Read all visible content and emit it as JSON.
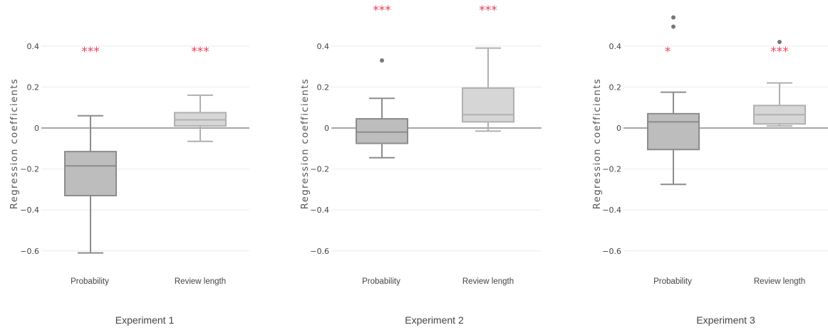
{
  "chart_data": [
    {
      "type": "box",
      "title": "Experiment 1",
      "ylabel": "Regression coefficients",
      "ylim": [
        -0.65,
        0.55
      ],
      "yticks": [
        "0.4",
        "0.2",
        "0",
        "−0.2",
        "−0.4",
        "−0.6"
      ],
      "grid": true,
      "categories": [
        "Probability",
        "Review length"
      ],
      "boxes": [
        {
          "category": "Probability",
          "min": -0.61,
          "q1": -0.33,
          "median": -0.185,
          "q3": -0.115,
          "max": 0.06,
          "outliers": [],
          "significance": "***",
          "color": "#bdbdbd",
          "edge": "#8c8c8c"
        },
        {
          "category": "Review length",
          "min": -0.065,
          "q1": 0.01,
          "median": 0.04,
          "q3": 0.075,
          "max": 0.16,
          "outliers": [],
          "significance": "***",
          "color": "#d6d6d6",
          "edge": "#b0b0b0"
        }
      ]
    },
    {
      "type": "box",
      "title": "Experiment 2",
      "ylabel": "Regression coefficients",
      "ylim": [
        -0.65,
        0.55
      ],
      "yticks": [
        "0.4",
        "0.2",
        "0",
        "−0.2",
        "−0.4",
        "−0.6"
      ],
      "grid": true,
      "categories": [
        "Probability",
        "Review length"
      ],
      "boxes": [
        {
          "category": "Probability",
          "min": -0.145,
          "q1": -0.075,
          "median": -0.02,
          "q3": 0.045,
          "max": 0.145,
          "outliers": [
            0.33
          ],
          "significance": "***",
          "color": "#bdbdbd",
          "edge": "#8c8c8c"
        },
        {
          "category": "Review length",
          "min": -0.015,
          "q1": 0.03,
          "median": 0.065,
          "q3": 0.195,
          "max": 0.39,
          "outliers": [],
          "significance": "***",
          "color": "#d6d6d6",
          "edge": "#b0b0b0"
        }
      ]
    },
    {
      "type": "box",
      "title": "Experiment 3",
      "ylabel": "Regression coefficients",
      "ylim": [
        -0.65,
        0.55
      ],
      "yticks": [
        "0.4",
        "0.2",
        "0",
        "−0.2",
        "−0.4",
        "−0.6"
      ],
      "grid": true,
      "categories": [
        "Probability",
        "Review length"
      ],
      "boxes": [
        {
          "category": "Probability",
          "min": -0.275,
          "q1": -0.105,
          "median": 0.03,
          "q3": 0.07,
          "max": 0.175,
          "outliers": [
            0.495,
            0.54
          ],
          "significance": "*",
          "color": "#bdbdbd",
          "edge": "#8c8c8c"
        },
        {
          "category": "Review length",
          "min": 0.01,
          "q1": 0.02,
          "median": 0.065,
          "q3": 0.11,
          "max": 0.22,
          "outliers": [
            0.42
          ],
          "significance": "***",
          "color": "#d6d6d6",
          "edge": "#b0b0b0"
        }
      ]
    }
  ]
}
